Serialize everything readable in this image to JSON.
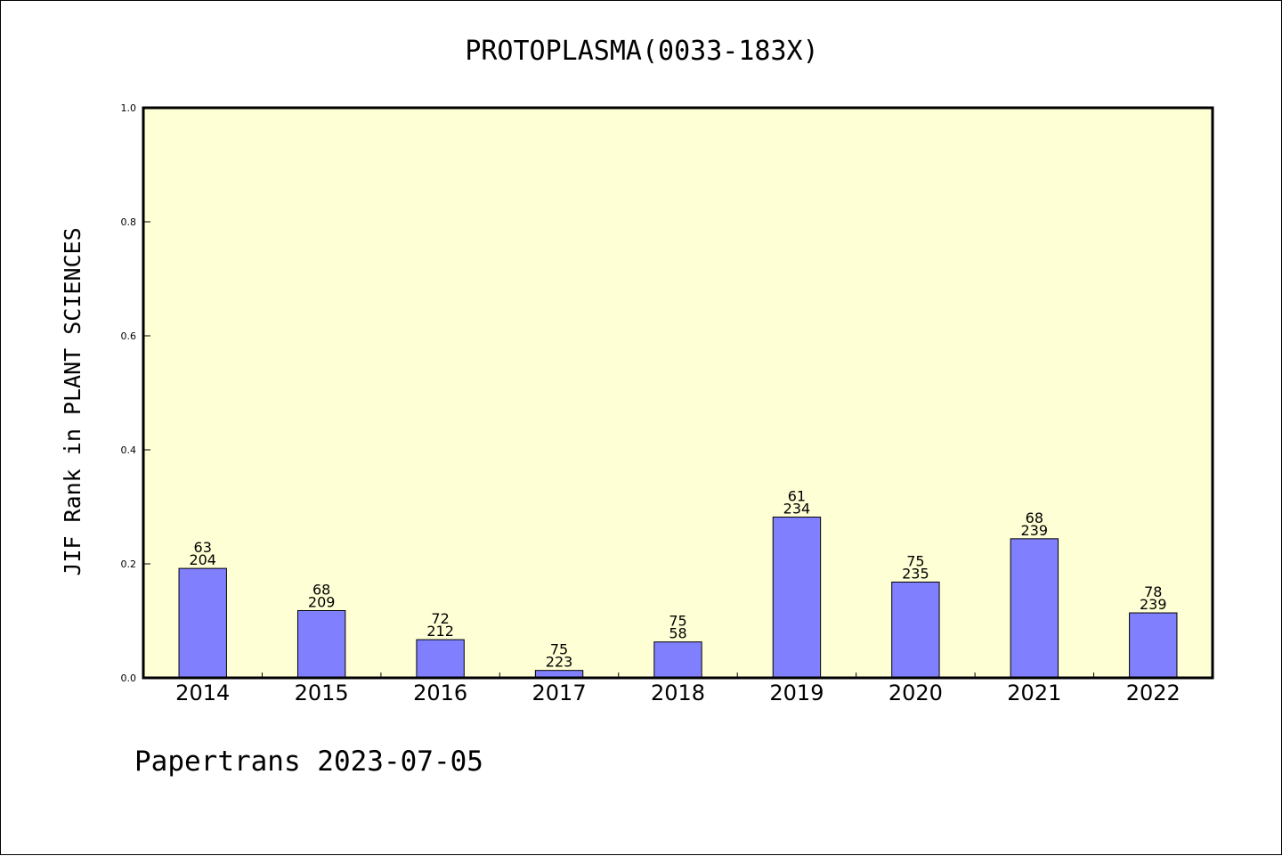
{
  "chart_data": {
    "type": "bar",
    "title": "PROTOPLASMA(0033-183X)",
    "ylabel": "JIF Rank in PLANT SCIENCES",
    "xlabel": "",
    "ylim": [
      0,
      1.0
    ],
    "yticks": [
      "0.0",
      "0.2",
      "0.4",
      "0.6",
      "0.8",
      "1.0"
    ],
    "categories": [
      "2014",
      "2015",
      "2016",
      "2017",
      "2018",
      "2019",
      "2020",
      "2021",
      "2022"
    ],
    "values": [
      0.192,
      0.118,
      0.067,
      0.013,
      0.063,
      0.282,
      0.168,
      0.244,
      0.114
    ],
    "rank_labels": [
      "63",
      "68",
      "72",
      "75",
      "75",
      "61",
      "75",
      "68",
      "78"
    ],
    "total_labels": [
      "204",
      "209",
      "212",
      "223",
      "58",
      "234",
      "235",
      "239",
      "239"
    ],
    "grid": false,
    "legend": "none",
    "colors": {
      "plot_background": "#ffffd5",
      "bar_fill": "#8080ff",
      "bar_stroke": "#000000"
    }
  },
  "footer": "Papertrans 2023-07-05"
}
